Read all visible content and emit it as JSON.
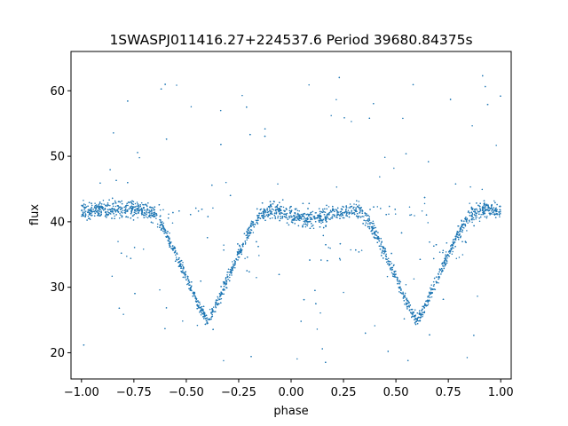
{
  "chart_data": {
    "type": "scatter",
    "title": "1SWASPJ011416.27+224537.6 Period 39680.84375s",
    "xlabel": "phase",
    "ylabel": "flux",
    "xlim": [
      -1.05,
      1.05
    ],
    "ylim": [
      16,
      66
    ],
    "xticks": [
      -1.0,
      -0.75,
      -0.5,
      -0.25,
      0.0,
      0.25,
      0.5,
      0.75,
      1.0
    ],
    "xtick_labels": [
      "−1.00",
      "−0.75",
      "−0.50",
      "−0.25",
      "0.00",
      "0.25",
      "0.50",
      "0.75",
      "1.00"
    ],
    "yticks": [
      20,
      30,
      40,
      50,
      60
    ],
    "ytick_labels": [
      "20",
      "30",
      "40",
      "50",
      "60"
    ],
    "grid": false,
    "marker_color": "#1f77b4",
    "series": [
      {
        "baseline_flux": 41.8,
        "baseline_scatter": 1.1,
        "primary_eclipse": {
          "phase": [
            -0.4,
            0.6
          ],
          "min_flux": 24.8,
          "half_width_phase": 0.25
        },
        "secondary_eclipse": {
          "phase": [
            0.1
          ],
          "min_flux": 40.2,
          "half_width_phase": 0.1
        },
        "light_curve": [
          [
            -1.0,
            41.6
          ],
          [
            -0.9,
            41.9
          ],
          [
            -0.8,
            42.0
          ],
          [
            -0.7,
            41.9
          ],
          [
            -0.65,
            41.0
          ],
          [
            -0.6,
            38.5
          ],
          [
            -0.55,
            35.0
          ],
          [
            -0.5,
            31.5
          ],
          [
            -0.45,
            27.8
          ],
          [
            -0.4,
            24.8
          ],
          [
            -0.35,
            27.8
          ],
          [
            -0.3,
            31.5
          ],
          [
            -0.25,
            35.0
          ],
          [
            -0.2,
            38.5
          ],
          [
            -0.15,
            41.0
          ],
          [
            -0.1,
            41.9
          ],
          [
            0.0,
            41.0
          ],
          [
            0.1,
            40.3
          ],
          [
            0.2,
            41.1
          ],
          [
            0.3,
            41.9
          ],
          [
            0.35,
            41.0
          ],
          [
            0.4,
            38.5
          ],
          [
            0.45,
            35.0
          ],
          [
            0.5,
            31.5
          ],
          [
            0.55,
            27.8
          ],
          [
            0.6,
            24.8
          ],
          [
            0.65,
            27.8
          ],
          [
            0.7,
            31.5
          ],
          [
            0.75,
            35.0
          ],
          [
            0.8,
            38.5
          ],
          [
            0.85,
            41.0
          ],
          [
            0.9,
            41.9
          ],
          [
            1.0,
            41.6
          ]
        ]
      }
    ]
  }
}
